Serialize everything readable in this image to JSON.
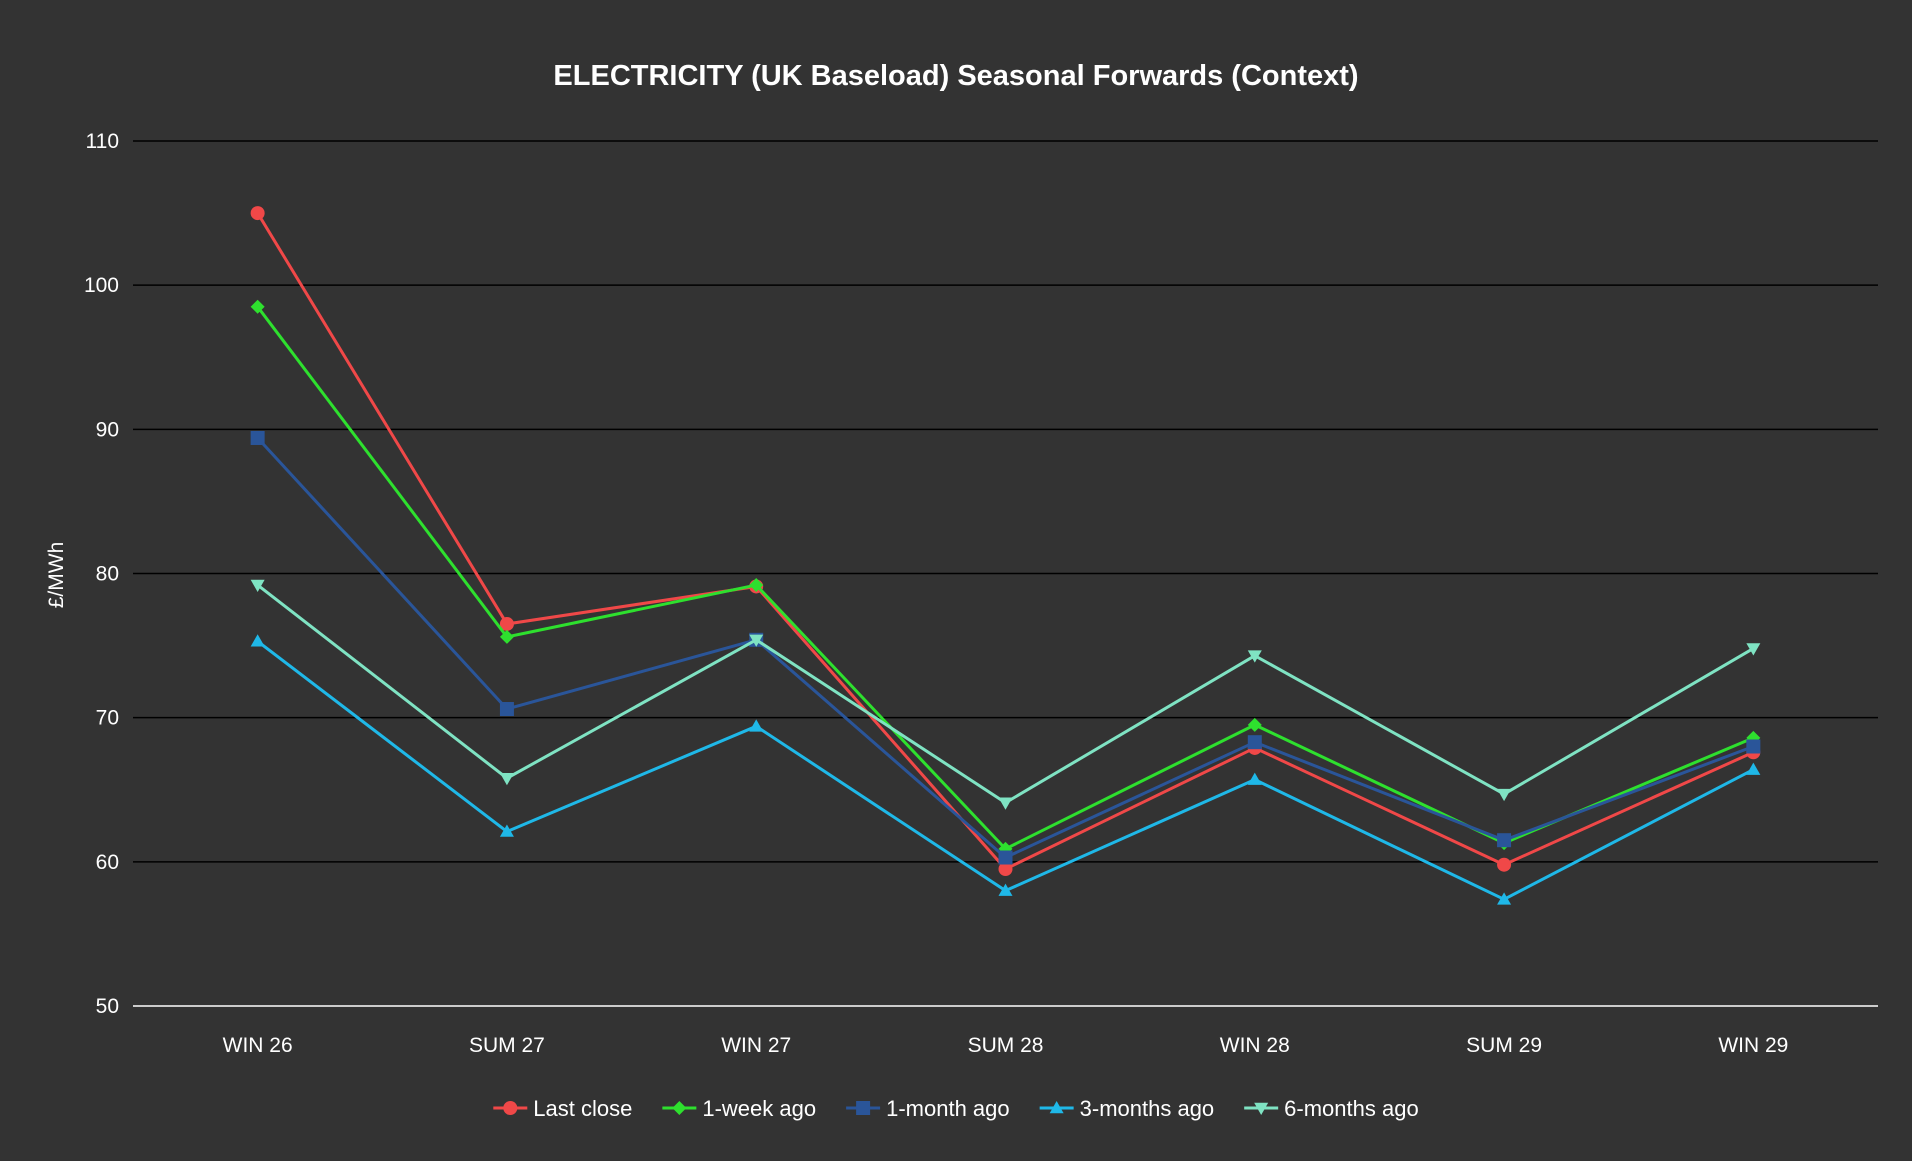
{
  "chart_data": {
    "type": "line",
    "title": "ELECTRICITY (UK Baseload) Seasonal Forwards (Context)",
    "xlabel": "",
    "ylabel": "£/MWh",
    "ylim": [
      50,
      110
    ],
    "yticks": [
      50,
      60,
      70,
      80,
      90,
      100,
      110
    ],
    "grid": true,
    "legend_position": "bottom-center",
    "categories": [
      "WIN 26",
      "SUM 27",
      "WIN 27",
      "SUM 28",
      "WIN 28",
      "SUM 29",
      "WIN 29"
    ],
    "series": [
      {
        "name": "Last close",
        "color": "#f04848",
        "marker": "circle",
        "values": [
          105.0,
          76.5,
          79.1,
          59.5,
          67.9,
          59.8,
          67.6
        ]
      },
      {
        "name": "1-week ago",
        "color": "#2ee02e",
        "marker": "diamond",
        "values": [
          98.5,
          75.6,
          79.2,
          60.9,
          69.5,
          61.3,
          68.6
        ]
      },
      {
        "name": "1-month ago",
        "color": "#2a5599",
        "marker": "square",
        "values": [
          89.4,
          70.6,
          75.4,
          60.3,
          68.3,
          61.5,
          68.0
        ]
      },
      {
        "name": "3-months ago",
        "color": "#1fb8e8",
        "marker": "triangle-up",
        "values": [
          75.3,
          62.1,
          69.4,
          58.0,
          65.7,
          57.4,
          66.4
        ]
      },
      {
        "name": "6-months ago",
        "color": "#7fe3c3",
        "marker": "triangle-down",
        "values": [
          79.2,
          65.8,
          75.4,
          64.1,
          74.3,
          64.7,
          74.8
        ]
      }
    ]
  },
  "colors": {
    "background": "#333333",
    "grid": "#000000",
    "axis": "#ffffff",
    "text": "#ffffff"
  }
}
